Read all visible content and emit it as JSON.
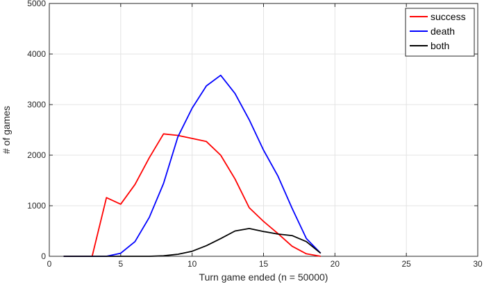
{
  "chart_data": {
    "type": "line",
    "xlabel": "Turn game ended (n = 50000)",
    "ylabel": "# of games",
    "xlim": [
      0,
      30
    ],
    "ylim": [
      0,
      5000
    ],
    "xticks": [
      0,
      5,
      10,
      15,
      20,
      25,
      30
    ],
    "yticks": [
      0,
      1000,
      2000,
      3000,
      4000,
      5000
    ],
    "grid": true,
    "legend_position": "top-right",
    "series": [
      {
        "name": "success",
        "color": "#ff0000",
        "x": [
          1,
          2,
          3,
          4,
          5,
          6,
          7,
          8,
          9,
          10,
          11,
          12,
          13,
          14,
          15,
          16,
          17,
          18,
          19
        ],
        "y": [
          0,
          0,
          0,
          1160,
          1030,
          1420,
          1950,
          2420,
          2390,
          2330,
          2270,
          2000,
          1530,
          960,
          690,
          450,
          200,
          50,
          0
        ]
      },
      {
        "name": "death",
        "color": "#0000ff",
        "x": [
          1,
          2,
          3,
          4,
          5,
          6,
          7,
          8,
          9,
          10,
          11,
          12,
          13,
          14,
          15,
          16,
          17,
          18,
          19
        ],
        "y": [
          0,
          0,
          0,
          0,
          60,
          290,
          770,
          1440,
          2360,
          2930,
          3370,
          3580,
          3220,
          2700,
          2100,
          1590,
          950,
          350,
          60
        ]
      },
      {
        "name": "both",
        "color": "#000000",
        "x": [
          1,
          2,
          3,
          4,
          5,
          6,
          7,
          8,
          9,
          10,
          11,
          12,
          13,
          14,
          15,
          16,
          17,
          18,
          19
        ],
        "y": [
          0,
          0,
          0,
          0,
          0,
          0,
          0,
          10,
          40,
          100,
          210,
          350,
          500,
          550,
          490,
          440,
          410,
          290,
          60
        ]
      }
    ]
  }
}
